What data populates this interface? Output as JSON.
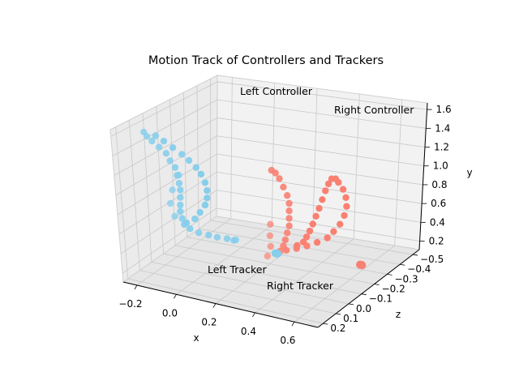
{
  "chart_data": {
    "type": "scatter",
    "projection": "3d",
    "title": "Motion Track of Controllers and Trackers",
    "xlabel": "x",
    "ylabel": "y",
    "zlabel": "z",
    "x_ticks": [
      "−0.2",
      "0.0",
      "0.2",
      "0.4",
      "0.6"
    ],
    "z_ticks": [
      "−0.5",
      "−0.4",
      "−0.3",
      "−0.2",
      "−0.1",
      "0.0",
      "0.1",
      "0.2"
    ],
    "y_ticks": [
      "0.2",
      "0.4",
      "0.6",
      "0.8",
      "1.0",
      "1.2",
      "1.4",
      "1.6"
    ],
    "grid": true,
    "colors": {
      "left": "#87ceeb",
      "right": "#fa8072",
      "pane": "#f2f2f2",
      "grid": "#c8c8c8"
    },
    "annotations": [
      {
        "label": "Left Controller"
      },
      {
        "label": "Right Controller"
      },
      {
        "label": "Left Tracker"
      },
      {
        "label": "Right Tracker"
      }
    ],
    "series": [
      {
        "name": "Left Controller",
        "color": "#87ceeb",
        "points": [
          [
            -0.25,
            1.6,
            0.1
          ],
          [
            -0.24,
            1.55,
            0.09
          ],
          [
            -0.22,
            1.5,
            0.08
          ],
          [
            -0.19,
            1.44,
            0.07
          ],
          [
            -0.16,
            1.38,
            0.06
          ],
          [
            -0.14,
            1.31,
            0.06
          ],
          [
            -0.12,
            1.24,
            0.05
          ],
          [
            -0.11,
            1.16,
            0.05
          ],
          [
            -0.1,
            1.08,
            0.05
          ],
          [
            -0.1,
            1.0,
            0.04
          ],
          [
            -0.1,
            0.92,
            0.04
          ],
          [
            -0.1,
            0.84,
            0.04
          ],
          [
            -0.1,
            0.77,
            0.04
          ],
          [
            -0.09,
            0.7,
            0.04
          ],
          [
            -0.08,
            0.64,
            0.04
          ],
          [
            -0.05,
            0.61,
            0.04
          ],
          [
            0.0,
            0.6,
            0.05
          ],
          [
            0.05,
            0.6,
            0.05
          ],
          [
            0.1,
            0.61,
            0.06
          ],
          [
            0.15,
            0.62,
            0.06
          ],
          [
            0.19,
            0.63,
            0.07
          ],
          [
            0.2,
            0.64,
            0.07
          ],
          [
            -0.08,
            0.64,
            0.02
          ],
          [
            -0.05,
            0.68,
            0.0
          ],
          [
            -0.03,
            0.75,
            -0.01
          ],
          [
            -0.01,
            0.83,
            -0.02
          ],
          [
            0.0,
            0.91,
            -0.02
          ],
          [
            0.0,
            0.99,
            -0.02
          ],
          [
            -0.01,
            1.07,
            -0.02
          ],
          [
            -0.03,
            1.15,
            -0.02
          ],
          [
            -0.05,
            1.22,
            -0.01
          ],
          [
            -0.08,
            1.29,
            0.0
          ],
          [
            -0.11,
            1.35,
            0.01
          ],
          [
            -0.15,
            1.41,
            0.02
          ],
          [
            -0.19,
            1.47,
            0.03
          ],
          [
            -0.22,
            1.53,
            0.05
          ],
          [
            -0.06,
            1.25,
            0.12
          ],
          [
            -0.08,
            1.1,
            0.14
          ],
          [
            -0.09,
            0.95,
            0.14
          ],
          [
            -0.08,
            0.8,
            0.12
          ]
        ]
      },
      {
        "name": "Right Controller",
        "color": "#fa8072",
        "points": [
          [
            0.37,
            1.45,
            0.05
          ],
          [
            0.39,
            1.43,
            0.05
          ],
          [
            0.41,
            1.38,
            0.05
          ],
          [
            0.43,
            1.3,
            0.05
          ],
          [
            0.45,
            1.22,
            0.05
          ],
          [
            0.46,
            1.14,
            0.05
          ],
          [
            0.46,
            1.06,
            0.05
          ],
          [
            0.46,
            0.98,
            0.05
          ],
          [
            0.46,
            0.9,
            0.05
          ],
          [
            0.45,
            0.82,
            0.05
          ],
          [
            0.44,
            0.74,
            0.05
          ],
          [
            0.43,
            0.67,
            0.05
          ],
          [
            0.42,
            0.62,
            0.06
          ],
          [
            0.44,
            0.62,
            0.04
          ],
          [
            0.48,
            0.64,
            0.02
          ],
          [
            0.52,
            0.67,
            0.0
          ],
          [
            0.56,
            0.71,
            -0.02
          ],
          [
            0.6,
            0.76,
            -0.04
          ],
          [
            0.62,
            0.82,
            -0.06
          ],
          [
            0.64,
            0.89,
            -0.08
          ],
          [
            0.65,
            0.97,
            -0.1
          ],
          [
            0.65,
            1.05,
            -0.12
          ],
          [
            0.64,
            1.13,
            -0.13
          ],
          [
            0.62,
            1.2,
            -0.14
          ],
          [
            0.59,
            1.25,
            -0.15
          ],
          [
            0.57,
            1.27,
            -0.16
          ],
          [
            0.55,
            1.26,
            -0.16
          ],
          [
            0.54,
            1.21,
            -0.15
          ],
          [
            0.53,
            1.14,
            -0.14
          ],
          [
            0.52,
            1.05,
            -0.13
          ],
          [
            0.51,
            0.96,
            -0.12
          ],
          [
            0.5,
            0.88,
            -0.11
          ],
          [
            0.49,
            0.8,
            -0.1
          ],
          [
            0.48,
            0.73,
            -0.09
          ],
          [
            0.47,
            0.67,
            -0.08
          ],
          [
            0.46,
            0.62,
            -0.07
          ],
          [
            0.44,
            0.59,
            -0.05
          ],
          [
            0.44,
            0.7,
            0.2
          ],
          [
            0.45,
            0.8,
            0.19
          ],
          [
            0.44,
            0.9,
            0.18
          ],
          [
            0.43,
            1.0,
            0.16
          ]
        ]
      },
      {
        "name": "Left Tracker",
        "color": "#87ceeb",
        "points": [
          [
            0.15,
            0.1,
            -0.35
          ],
          [
            0.155,
            0.1,
            -0.35
          ],
          [
            0.16,
            0.1,
            -0.35
          ]
        ]
      },
      {
        "name": "Right Tracker",
        "color": "#fa8072",
        "points": [
          [
            0.52,
            0.07,
            -0.45
          ],
          [
            0.525,
            0.07,
            -0.45
          ],
          [
            0.53,
            0.07,
            -0.45
          ]
        ]
      }
    ]
  }
}
